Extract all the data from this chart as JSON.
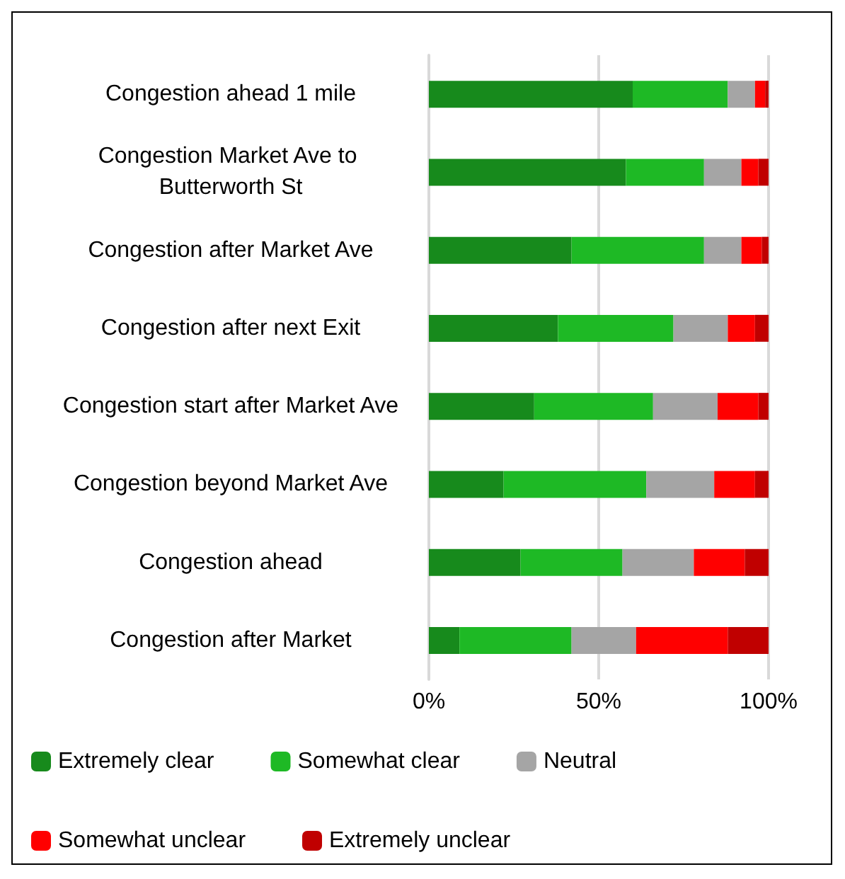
{
  "chart_data": {
    "type": "bar",
    "orientation": "horizontal",
    "stacked": true,
    "categories": [
      "Congestion ahead 1 mile",
      "Congestion Market Ave to Butterworth St",
      "Congestion after Market Ave",
      "Congestion after next Exit",
      "Congestion start after Market Ave",
      "Congestion beyond Market Ave",
      "Congestion ahead",
      "Congestion after Market"
    ],
    "series": [
      {
        "name": "Extremely clear",
        "color": "#178a1c",
        "values": [
          60,
          58,
          42,
          38,
          31,
          22,
          27,
          9
        ]
      },
      {
        "name": "Somewhat clear",
        "color": "#1eb925",
        "values": [
          28,
          23,
          39,
          34,
          35,
          42,
          30,
          33
        ]
      },
      {
        "name": "Neutral",
        "color": "#a5a5a5",
        "values": [
          8,
          11,
          11,
          16,
          19,
          20,
          21,
          19
        ]
      },
      {
        "name": "Somewhat unclear",
        "color": "#ff0000",
        "values": [
          3,
          5,
          6,
          8,
          12,
          12,
          15,
          27
        ]
      },
      {
        "name": "Extremely unclear",
        "color": "#c00000",
        "values": [
          1,
          3,
          2,
          4,
          3,
          4,
          7,
          12
        ]
      }
    ],
    "xlim": [
      0,
      100
    ],
    "xticks": [
      {
        "value": 0,
        "label": "0%"
      },
      {
        "value": 50,
        "label": "50%"
      },
      {
        "value": 100,
        "label": "100%"
      }
    ],
    "grid": "x",
    "legend": "bottom"
  }
}
